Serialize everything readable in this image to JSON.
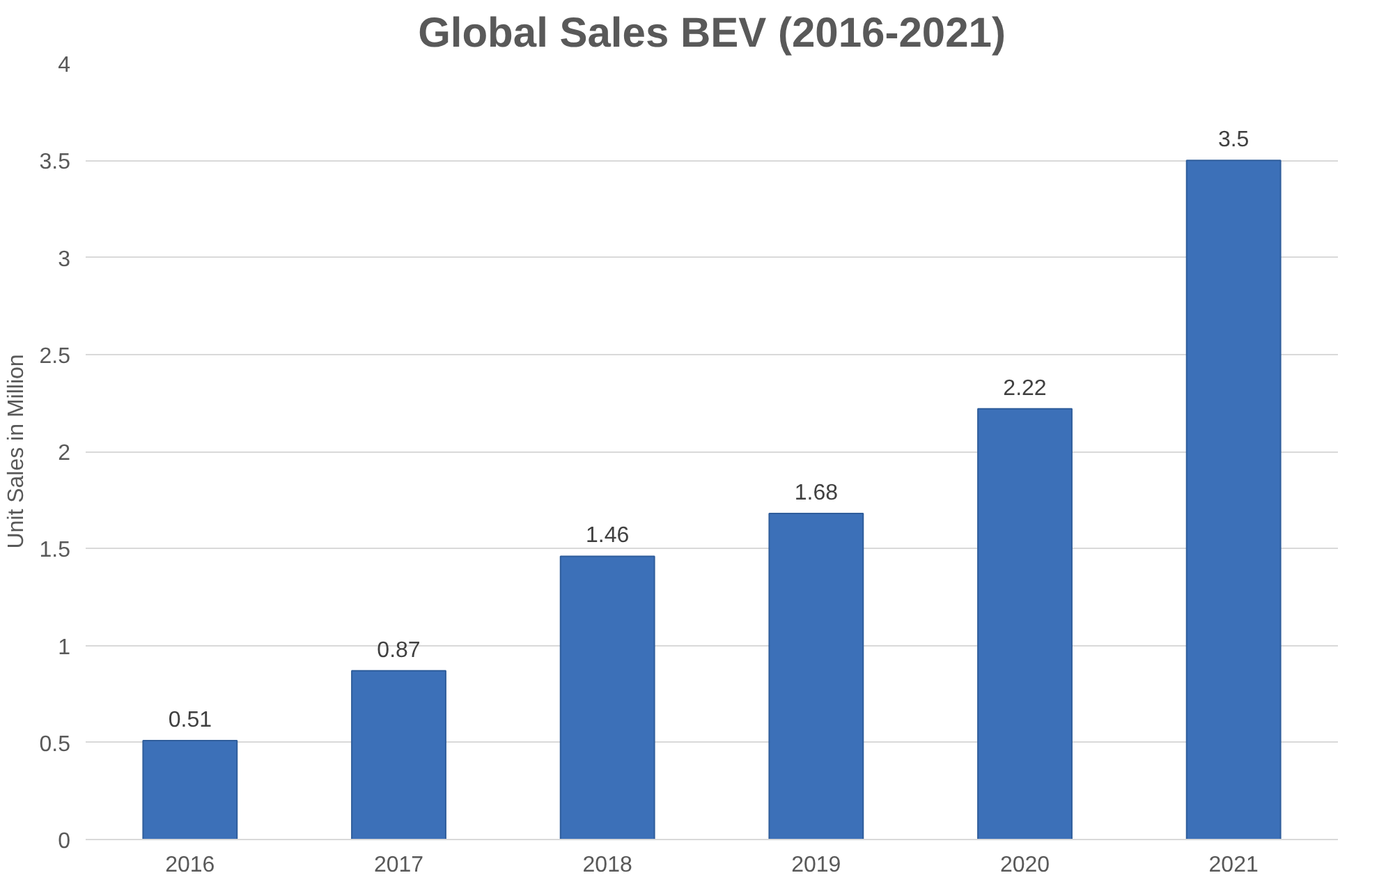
{
  "chart_data": {
    "type": "bar",
    "title": "Global Sales BEV (2016-2021)",
    "ylabel": "Unit Sales in Million",
    "categories": [
      "2016",
      "2017",
      "2018",
      "2019",
      "2020",
      "2021"
    ],
    "values": [
      0.51,
      0.87,
      1.46,
      1.68,
      2.22,
      3.5
    ],
    "color": "#3c70b8",
    "ylim": [
      0,
      4
    ],
    "yticks": [
      0,
      0.5,
      1,
      1.5,
      2,
      2.5,
      3,
      3.5,
      4
    ],
    "grid": "y",
    "data_labels": true
  }
}
